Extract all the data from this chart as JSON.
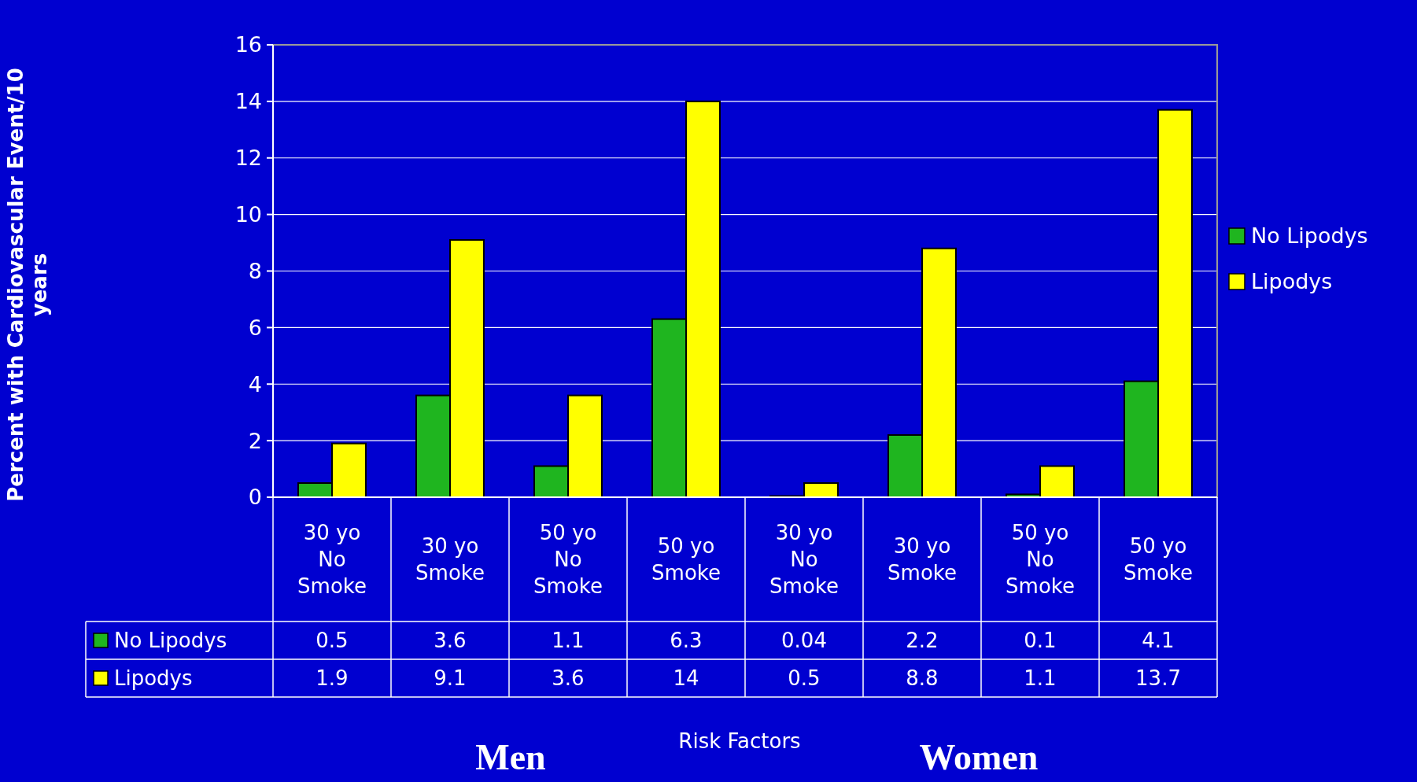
{
  "chart_data": {
    "type": "bar",
    "categories": [
      "30 yo No Smoke",
      "30 yo Smoke",
      "50 yo No Smoke",
      "50 yo Smoke",
      "30 yo No Smoke",
      "30 yo Smoke",
      "50 yo No Smoke",
      "50 yo Smoke"
    ],
    "series": [
      {
        "name": "No Lipodys",
        "color": "#1fb51f",
        "values": [
          0.5,
          3.6,
          1.1,
          6.3,
          0.04,
          2.2,
          0.1,
          4.1
        ]
      },
      {
        "name": "Lipodys",
        "color": "#ffff00",
        "values": [
          1.9,
          9.1,
          3.6,
          14,
          0.5,
          8.8,
          1.1,
          13.7
        ]
      }
    ],
    "ylim": [
      0,
      16
    ],
    "yticks": [
      0,
      2,
      4,
      6,
      8,
      10,
      12,
      14,
      16
    ],
    "grid": "y",
    "legend": "right",
    "data_labels": true,
    "annotations": [
      "Percent with Cardiovascular Event/10 years",
      "Risk Factors",
      "Men",
      "Women"
    ]
  }
}
